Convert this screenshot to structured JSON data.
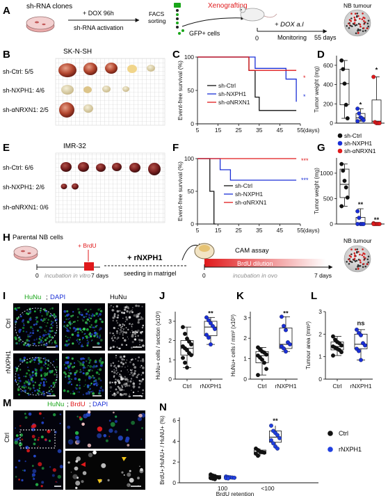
{
  "panels": {
    "A": {
      "letter": "A",
      "sh_rna_clones": "sh-RNA clones",
      "dox": "+ DOX 96h",
      "sh_activation": "sh-RNA activation",
      "facs": "FACS",
      "sorting": "sorting",
      "gfp": "GFP+ cells",
      "xenografting": "Xenografting",
      "dox_al": "+ DOX a.l",
      "zero": "0",
      "monitoring": "Monitoring",
      "days55": "55 days",
      "nb_tumour": "NB tumour"
    },
    "B": {
      "letter": "B",
      "cell_line": "SK-N-SH",
      "rows": [
        "sh-Ctrl: 5/5",
        "sh-NXPH1: 4/6",
        "sh-αNRXN1: 2/5"
      ]
    },
    "C": {
      "letter": "C",
      "ylabel": "Event-free survival (%)",
      "xticks": [
        "5",
        "15",
        "25",
        "35",
        "45",
        "55"
      ],
      "xunit": "(days)",
      "yticks": [
        "0",
        "50",
        "100"
      ],
      "legend": [
        "sh-Ctrl",
        "sh-NXPH1",
        "sh-αNRXN1"
      ],
      "sig": [
        "*",
        "*"
      ]
    },
    "D": {
      "letter": "D",
      "ylabel": "Tumor weight (mg)",
      "yticks": [
        "0",
        "200",
        "400",
        "600"
      ],
      "sig": [
        "*",
        "*"
      ],
      "legend": [
        "sh-Ctrl",
        "sh-NXPH1",
        "sh-αNRXN1"
      ]
    },
    "E": {
      "letter": "E",
      "cell_line": "IMR-32",
      "rows": [
        "sh-Ctrl: 6/6",
        "sh-NXPH1: 2/6",
        "sh-αNRXN1: 0/6"
      ]
    },
    "F": {
      "letter": "F",
      "ylabel": "Event-free survival (%)",
      "xticks": [
        "5",
        "15",
        "25",
        "35",
        "45",
        "55"
      ],
      "xunit": "(days)",
      "yticks": [
        "0",
        "50",
        "100"
      ],
      "legend": [
        "sh-Ctrl",
        "sh-NXPH1",
        "sh-αNRXN1"
      ],
      "sig": [
        "***",
        "***"
      ]
    },
    "G": {
      "letter": "G",
      "ylabel": "Tumor weight (mg)",
      "yticks": [
        "0",
        "500",
        "1000"
      ],
      "sig": [
        "**",
        "**"
      ]
    },
    "H": {
      "letter": "H",
      "parental": "Parental NB cells",
      "brdu": "+ BrdU",
      "zero": "0",
      "days7": "7 days",
      "incubation_vitro": "incubation in vitro",
      "rnxph1": "+ rNXPH1",
      "seeding": "seeding in matrigel",
      "cam": "CAM assay",
      "brdu_dilution": "BrdU dilution",
      "zero2": "0",
      "incubation_ovo": "incubation in ovo",
      "days7b": "7 days",
      "nb_tumour": "NB tumour"
    },
    "I": {
      "letter": "I",
      "hunu": "HuNu",
      "dapi": "DAPI",
      "sep": ";",
      "hunu2": "HuNu",
      "rows": [
        "Ctrl",
        "rNXPH1"
      ]
    },
    "J": {
      "letter": "J",
      "ylabel": "HuNu+ cells / section (x10³)",
      "yticks": [
        "0",
        "1",
        "2",
        "3"
      ],
      "xticks": [
        "Ctrl",
        "rNXPH1"
      ],
      "sig": "**"
    },
    "K": {
      "letter": "K",
      "ylabel": "HuNu+ cells / mm² (x10³)",
      "yticks": [
        "0",
        "1",
        "2",
        "3"
      ],
      "xticks": [
        "Ctrl",
        "rNXPH1"
      ],
      "sig": "**"
    },
    "L": {
      "letter": "L",
      "ylabel": "Tumour area (mm²)",
      "yticks": [
        "0",
        "1",
        "2",
        "3"
      ],
      "xticks": [
        "Ctrl",
        "rNXPH1"
      ],
      "sig": "ns"
    },
    "M": {
      "letter": "M",
      "hunu": "HuNu",
      "brdu": "BrdU",
      "dapi": "DAPI",
      "sep1": ";",
      "sep2": ";",
      "row": "Ctrl"
    },
    "N": {
      "letter": "N",
      "ylabel": "BrdU+;HuNU+ / HuNU+ (%)",
      "yticks": [
        "0",
        "2",
        "4",
        "6"
      ],
      "xticks": [
        "100",
        "<100"
      ],
      "xlabel": "BrdU retention",
      "sig": "**",
      "legend": [
        "Ctrl",
        "rNXPH1"
      ]
    }
  },
  "colors": {
    "ctrl": "#111111",
    "nxph1": "#1a2fd6",
    "anrxn1": "#e0191b",
    "green": "#19a619",
    "red": "#e0191b",
    "blue": "#1a2fd6"
  },
  "chart_data": [
    {
      "id": "C",
      "type": "line",
      "xlim": [
        5,
        55
      ],
      "ylim": [
        0,
        100
      ],
      "series": [
        {
          "name": "sh-Ctrl",
          "x": [
            5,
            30,
            30,
            33,
            33,
            35,
            35,
            53
          ],
          "y": [
            100,
            100,
            80,
            80,
            40,
            40,
            20,
            20
          ]
        },
        {
          "name": "sh-NXPH1",
          "x": [
            5,
            33,
            33,
            48,
            48,
            53,
            53
          ],
          "y": [
            100,
            100,
            83,
            83,
            67,
            67,
            33
          ]
        },
        {
          "name": "sh-αNRXN1",
          "x": [
            5,
            30,
            30,
            53
          ],
          "y": [
            100,
            100,
            80,
            80
          ]
        }
      ]
    },
    {
      "id": "D",
      "type": "scatter",
      "categories": [
        "sh-Ctrl",
        "sh-NXPH1",
        "sh-αNRXN1"
      ],
      "ylim": [
        0,
        700
      ],
      "box": [
        [
          50,
          190,
          410,
          560,
          650
        ],
        [
          20,
          30,
          55,
          100,
          150
        ],
        [
          0,
          0,
          20,
          240,
          480
        ]
      ],
      "points": [
        [
          650,
          560,
          410,
          190,
          50
        ],
        [
          150,
          100,
          60,
          50,
          30,
          20
        ],
        [
          480,
          10,
          0,
          0,
          0
        ]
      ]
    },
    {
      "id": "F",
      "type": "line",
      "xlim": [
        5,
        55
      ],
      "ylim": [
        0,
        100
      ],
      "series": [
        {
          "name": "sh-Ctrl",
          "x": [
            5,
            11,
            11,
            13,
            13,
            14
          ],
          "y": [
            100,
            100,
            50,
            50,
            0,
            0
          ]
        },
        {
          "name": "sh-NXPH1",
          "x": [
            5,
            16,
            16,
            21,
            21,
            53
          ],
          "y": [
            100,
            100,
            83,
            83,
            67,
            67
          ]
        },
        {
          "name": "sh-αNRXN1",
          "x": [
            5,
            53
          ],
          "y": [
            100,
            100
          ]
        }
      ]
    },
    {
      "id": "G",
      "type": "scatter",
      "categories": [
        "sh-Ctrl",
        "sh-NXPH1",
        "sh-αNRXN1"
      ],
      "ylim": [
        0,
        1300
      ],
      "box": [
        [
          350,
          520,
          780,
          1080,
          1180
        ],
        [
          0,
          0,
          0,
          130,
          300
        ],
        [
          0,
          0,
          0,
          10,
          20
        ]
      ],
      "points": [
        [
          1180,
          1050,
          850,
          720,
          520,
          350
        ],
        [
          250,
          120,
          0,
          0,
          0,
          0
        ],
        [
          15,
          0,
          0,
          0,
          0,
          0
        ]
      ]
    },
    {
      "id": "J",
      "type": "scatter",
      "categories": [
        "Ctrl",
        "rNXPH1"
      ],
      "ylim": [
        0,
        3.5
      ],
      "box": [
        [
          0.6,
          1.25,
          1.6,
          2.0,
          2.7
        ],
        [
          1.8,
          2.25,
          2.7,
          3.0,
          3.2
        ]
      ],
      "points": [
        [
          2.7,
          2.35,
          2.1,
          1.95,
          1.8,
          1.7,
          1.6,
          1.5,
          1.35,
          1.25,
          1.1,
          0.85,
          0.6
        ],
        [
          3.2,
          3.05,
          2.9,
          2.75,
          2.6,
          2.3,
          2.15,
          1.8
        ]
      ]
    },
    {
      "id": "K",
      "type": "scatter",
      "categories": [
        "Ctrl",
        "rNXPH1"
      ],
      "ylim": [
        0,
        3.3
      ],
      "box": [
        [
          0.2,
          0.8,
          1.15,
          1.35,
          1.55
        ],
        [
          1.35,
          1.5,
          1.7,
          2.5,
          3.05
        ]
      ],
      "points": [
        [
          1.55,
          1.45,
          1.35,
          1.3,
          1.2,
          1.15,
          1.05,
          0.95,
          0.8,
          0.5,
          0.2
        ],
        [
          3.05,
          2.6,
          2.4,
          1.8,
          1.7,
          1.6,
          1.5,
          1.35
        ]
      ]
    },
    {
      "id": "L",
      "type": "scatter",
      "categories": [
        "Ctrl",
        "rNXPH1"
      ],
      "ylim": [
        0,
        3.0
      ],
      "box": [
        [
          1.05,
          1.3,
          1.45,
          1.65,
          1.9
        ],
        [
          0.85,
          1.35,
          1.55,
          2.0,
          2.2
        ]
      ],
      "points": [
        [
          1.9,
          1.75,
          1.65,
          1.6,
          1.5,
          1.45,
          1.4,
          1.35,
          1.3,
          1.2,
          1.05
        ],
        [
          2.2,
          2.05,
          1.95,
          1.6,
          1.5,
          1.35,
          1.25,
          0.85
        ]
      ]
    },
    {
      "id": "N",
      "type": "scatter",
      "categories": [
        "100",
        "<100"
      ],
      "series_names": [
        "Ctrl",
        "rNXPH1"
      ],
      "ylim": [
        0,
        6.3
      ],
      "box": [
        [
          [
            0.35,
            0.4,
            0.55,
            0.7,
            0.8
          ],
          [
            0.4,
            0.45,
            0.5,
            0.55,
            0.6
          ]
        ],
        [
          [
            2.55,
            2.8,
            2.95,
            3.15,
            3.3
          ],
          [
            3.3,
            3.9,
            4.4,
            5.0,
            5.5
          ]
        ]
      ],
      "points": [
        [
          [
            0.8,
            0.7,
            0.65,
            0.55,
            0.5,
            0.45,
            0.4,
            0.35
          ],
          [
            0.6,
            0.55,
            0.52,
            0.5,
            0.48,
            0.45,
            0.42
          ]
        ],
        [
          [
            3.3,
            3.15,
            3.0,
            2.95,
            2.9,
            2.8,
            2.6
          ],
          [
            5.5,
            5.0,
            4.8,
            4.6,
            4.3,
            4.1,
            3.8,
            3.5,
            3.3
          ]
        ]
      ]
    }
  ]
}
